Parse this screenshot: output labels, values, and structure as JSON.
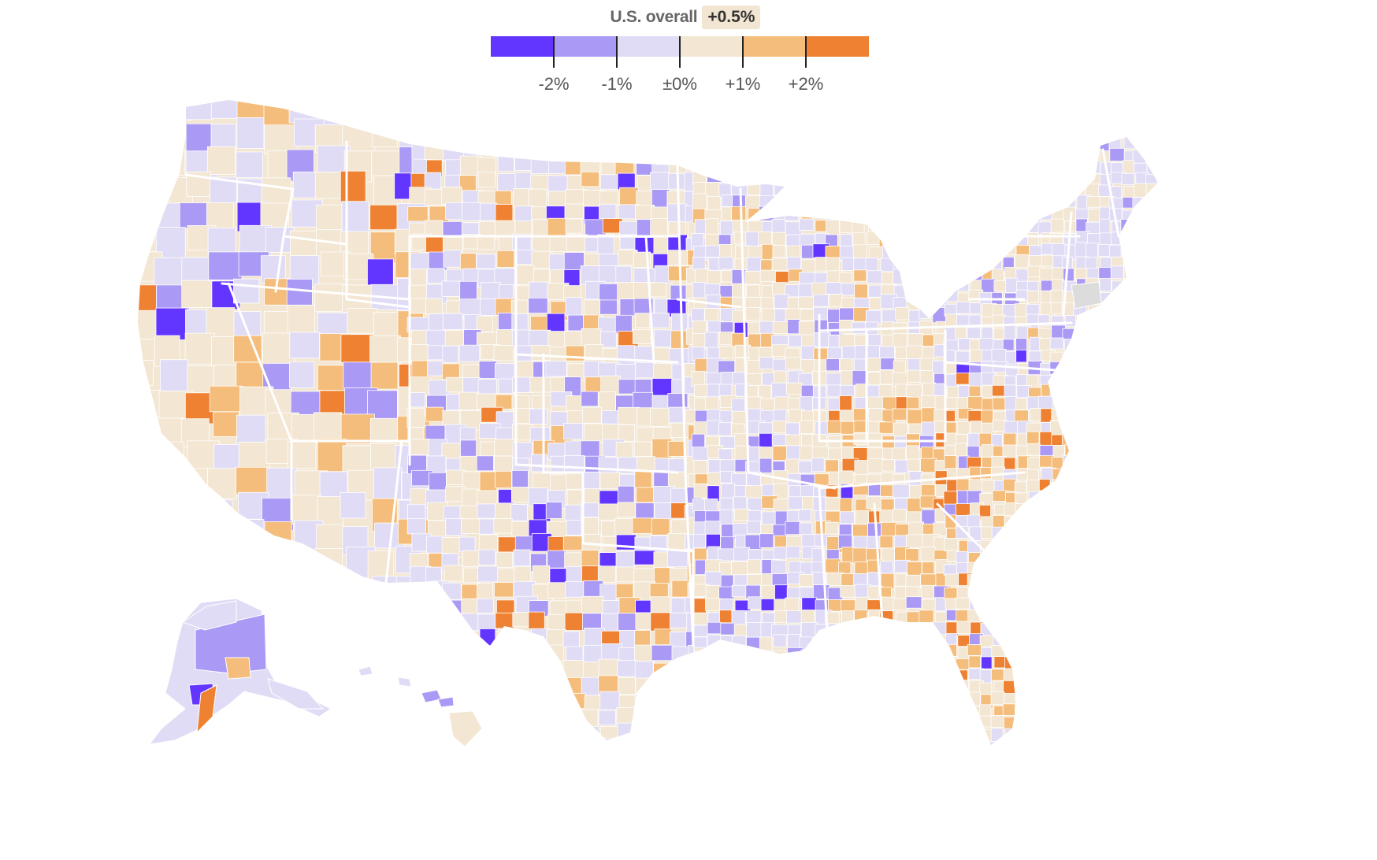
{
  "legend": {
    "overall_label": "U.S. overall",
    "overall_value": "+0.5%",
    "colors": [
      "#6236ff",
      "#aa99f5",
      "#e0dcf5",
      "#f3e6d2",
      "#f5bd7b",
      "#ef8232"
    ],
    "tick_labels": [
      "-2%",
      "-1%",
      "±0%",
      "+1%",
      "+2%"
    ]
  },
  "map": {
    "colors": {
      "very_neg": "#6236ff",
      "neg": "#aa99f5",
      "slight_neg": "#e0dcf5",
      "slight_pos": "#f3e6d2",
      "pos": "#f5bd7b",
      "very_pos": "#ef8232",
      "no_data": "#dcdcdc",
      "border": "#ffffff"
    }
  }
}
